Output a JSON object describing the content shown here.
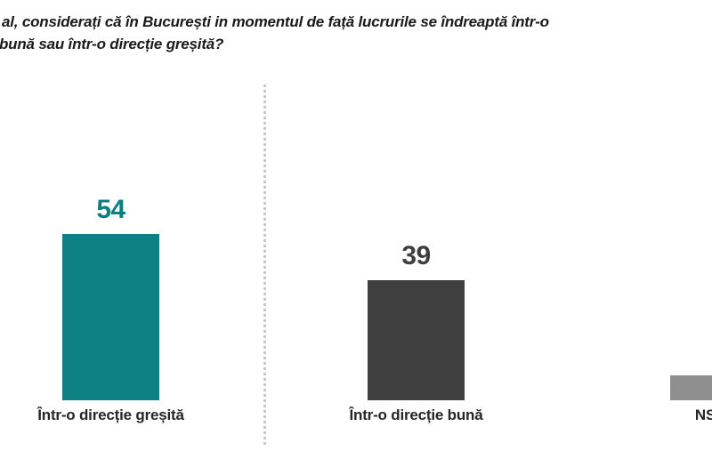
{
  "title": {
    "line1": "al, considerați că în București in momentul de față lucrurile se îndreaptă într-o",
    "line2": "bună sau într-o direcție greșită?"
  },
  "colors": {
    "background": "#ffffff",
    "teal": "#0e8185",
    "dark_gray": "#3f3f3f",
    "light_gray": "#8f8f8f",
    "divider": "#c7c7c7",
    "title_text": "#1a1a1a",
    "label_text": "#262626"
  },
  "chart_data": {
    "type": "bar",
    "title": "al, considerați că în București in momentul de față lucrurile se îndreaptă într-o bună sau într-o direcție greșită?",
    "categories": [
      "Într-o direcție greșită",
      "Într-o direcție bună",
      "NS"
    ],
    "values": [
      54,
      39,
      8
    ],
    "value_labels": [
      "54",
      "39",
      ""
    ],
    "bar_colors": [
      "#0e8185",
      "#3f3f3f",
      "#8f8f8f"
    ],
    "value_label_colors": [
      "#0d7e84",
      "#3f3f3f",
      "#8f8f8f"
    ],
    "xlabel": "",
    "ylabel": "",
    "ylim": [
      0,
      60
    ],
    "grid": false,
    "legend": "none",
    "notes": "third bar and its label are clipped by the right image edge; its numeric label is not visible (value estimated from bar height); a vertical dotted divider separates the first bar from the second"
  }
}
